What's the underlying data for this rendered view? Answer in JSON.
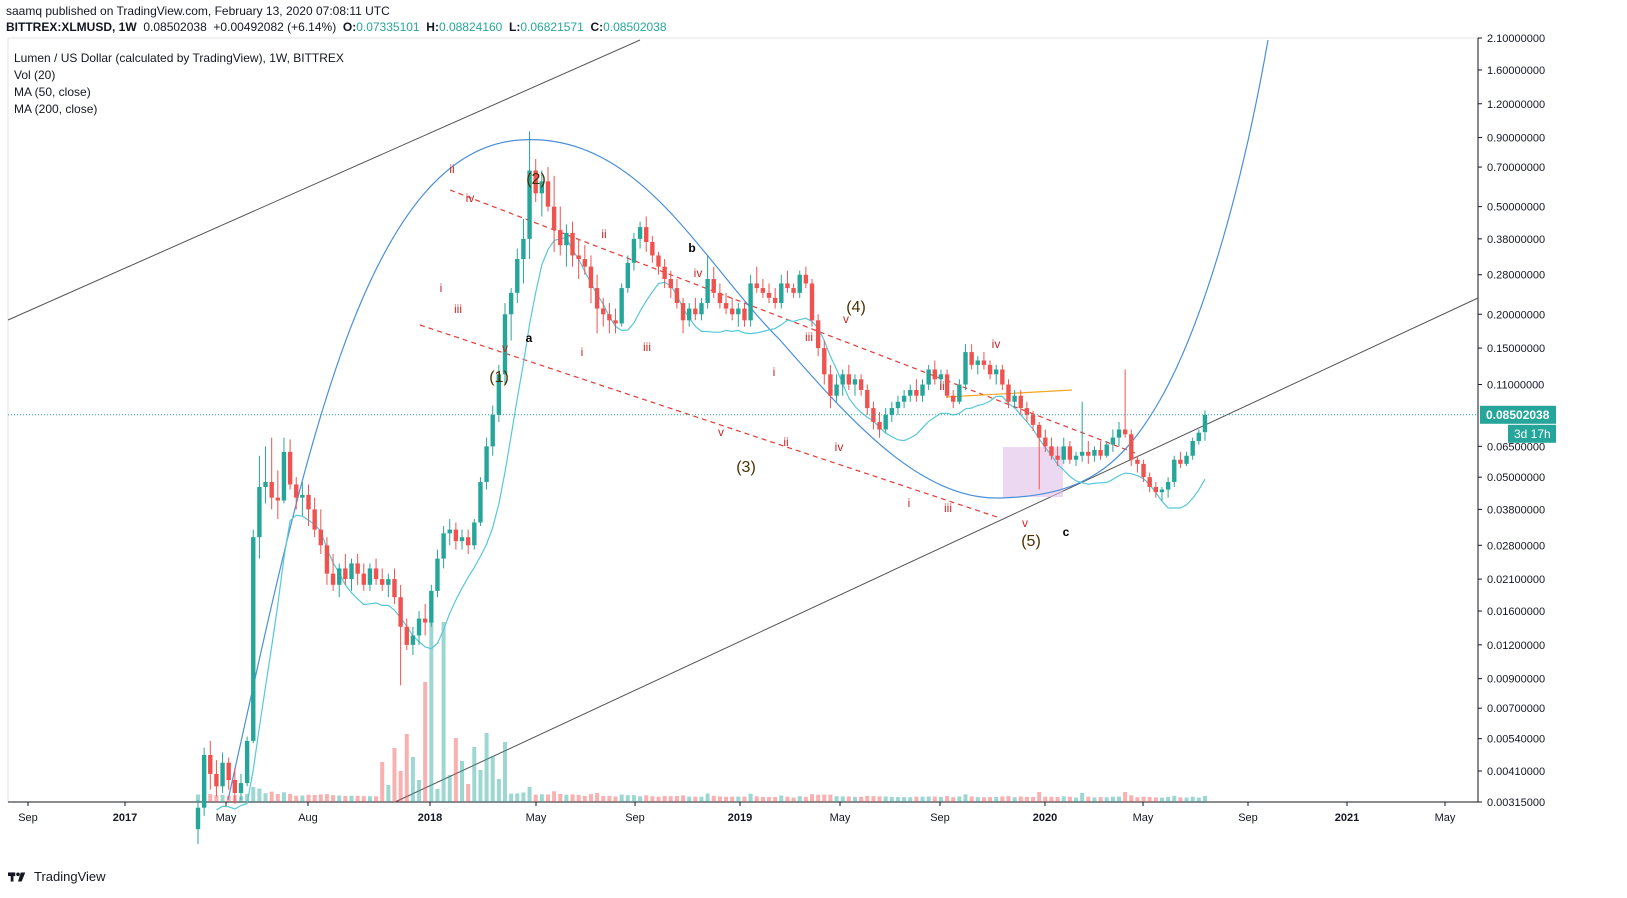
{
  "header": {
    "publish_line": "saamq published on TradingView.com, February 13, 2020 07:08:11 UTC",
    "symbol": "BITTREX:XLMUSD, 1W",
    "last": "0.08502038",
    "change": "+0.00492082 (+6.14%)",
    "o_label": "O:",
    "o": "0.07335101",
    "h_label": "H:",
    "h": "0.08824160",
    "l_label": "L:",
    "l": "0.06821571",
    "c_label": "C:",
    "c": "0.08502038"
  },
  "legend": {
    "title": "Lumen / US Dollar (calculated by TradingView), 1W, BITTREX",
    "vol": "Vol (20)",
    "ma50": "MA (50, close)",
    "ma200": "MA (200, close)"
  },
  "footer": {
    "brand": "TradingView"
  },
  "colors": {
    "up": "#26a69a",
    "down": "#ef5350",
    "ma50": "#56c8d8",
    "ma200": "#f5a623",
    "curve": "#4a90d9",
    "wave": "#c62828"
  },
  "chart_data": {
    "type": "candlestick",
    "scale": "log",
    "title": "Lumen / US Dollar (calculated by TradingView), 1W, BITTREX",
    "x_ticks": [
      "Sep",
      "2017",
      "May",
      "Aug",
      "2018",
      "May",
      "Sep",
      "2019",
      "May",
      "Sep",
      "2020",
      "May",
      "Sep",
      "2021",
      "May"
    ],
    "y_ticks": [
      "2.10000000",
      "1.60000000",
      "1.20000000",
      "0.90000000",
      "0.70000000",
      "0.50000000",
      "0.38000000",
      "0.28000000",
      "0.20000000",
      "0.15000000",
      "0.11000000",
      "0.06500000",
      "0.05000000",
      "0.03800000",
      "0.02800000",
      "0.02100000",
      "0.01600000",
      "0.01200000",
      "0.00900000",
      "0.00700000",
      "0.00540000",
      "0.00410000",
      "0.00315000"
    ],
    "last_price_label": "0.08502038",
    "countdown_label": "3d 17h",
    "ylim": [
      0.00315,
      2.1
    ],
    "candles": [
      [
        0.0025,
        0.0032,
        0.0022,
        0.003
      ],
      [
        0.003,
        0.005,
        0.0028,
        0.0047
      ],
      [
        0.0047,
        0.0053,
        0.0035,
        0.004
      ],
      [
        0.004,
        0.0045,
        0.0033,
        0.0036
      ],
      [
        0.0036,
        0.0048,
        0.0034,
        0.0044
      ],
      [
        0.0044,
        0.0046,
        0.0035,
        0.0038
      ],
      [
        0.0038,
        0.0042,
        0.0031,
        0.0034
      ],
      [
        0.0034,
        0.004,
        0.0032,
        0.0037
      ],
      [
        0.0037,
        0.0055,
        0.0036,
        0.0053
      ],
      [
        0.0053,
        0.032,
        0.0052,
        0.03
      ],
      [
        0.03,
        0.06,
        0.025,
        0.046
      ],
      [
        0.046,
        0.065,
        0.04,
        0.048
      ],
      [
        0.048,
        0.07,
        0.038,
        0.042
      ],
      [
        0.042,
        0.053,
        0.035,
        0.041
      ],
      [
        0.041,
        0.07,
        0.04,
        0.062
      ],
      [
        0.062,
        0.069,
        0.045,
        0.047
      ],
      [
        0.047,
        0.05,
        0.038,
        0.042
      ],
      [
        0.042,
        0.048,
        0.036,
        0.043
      ],
      [
        0.043,
        0.047,
        0.033,
        0.038
      ],
      [
        0.038,
        0.042,
        0.03,
        0.032
      ],
      [
        0.032,
        0.038,
        0.026,
        0.028
      ],
      [
        0.028,
        0.03,
        0.02,
        0.022
      ],
      [
        0.022,
        0.026,
        0.019,
        0.02
      ],
      [
        0.02,
        0.024,
        0.018,
        0.023
      ],
      [
        0.023,
        0.026,
        0.02,
        0.021
      ],
      [
        0.021,
        0.025,
        0.019,
        0.024
      ],
      [
        0.024,
        0.026,
        0.02,
        0.022
      ],
      [
        0.022,
        0.024,
        0.019,
        0.02
      ],
      [
        0.02,
        0.024,
        0.019,
        0.023
      ],
      [
        0.023,
        0.025,
        0.02,
        0.021
      ],
      [
        0.021,
        0.023,
        0.019,
        0.02
      ],
      [
        0.02,
        0.022,
        0.018,
        0.021
      ],
      [
        0.021,
        0.023,
        0.017,
        0.018
      ],
      [
        0.018,
        0.02,
        0.0085,
        0.014
      ],
      [
        0.014,
        0.015,
        0.0115,
        0.012
      ],
      [
        0.012,
        0.014,
        0.011,
        0.013
      ],
      [
        0.013,
        0.016,
        0.012,
        0.015
      ],
      [
        0.015,
        0.017,
        0.013,
        0.0145
      ],
      [
        0.0145,
        0.02,
        0.014,
        0.019
      ],
      [
        0.019,
        0.027,
        0.018,
        0.025
      ],
      [
        0.025,
        0.033,
        0.023,
        0.031
      ],
      [
        0.031,
        0.035,
        0.028,
        0.032
      ],
      [
        0.032,
        0.034,
        0.027,
        0.029
      ],
      [
        0.029,
        0.032,
        0.027,
        0.03
      ],
      [
        0.03,
        0.032,
        0.026,
        0.028
      ],
      [
        0.028,
        0.035,
        0.027,
        0.034
      ],
      [
        0.034,
        0.05,
        0.033,
        0.048
      ],
      [
        0.048,
        0.07,
        0.045,
        0.065
      ],
      [
        0.065,
        0.092,
        0.06,
        0.085
      ],
      [
        0.085,
        0.13,
        0.08,
        0.12
      ],
      [
        0.12,
        0.22,
        0.11,
        0.2
      ],
      [
        0.2,
        0.25,
        0.16,
        0.24
      ],
      [
        0.24,
        0.35,
        0.22,
        0.32
      ],
      [
        0.32,
        0.45,
        0.26,
        0.38
      ],
      [
        0.38,
        0.95,
        0.32,
        0.68
      ],
      [
        0.68,
        0.75,
        0.52,
        0.56
      ],
      [
        0.56,
        0.68,
        0.46,
        0.62
      ],
      [
        0.62,
        0.7,
        0.48,
        0.5
      ],
      [
        0.5,
        0.65,
        0.34,
        0.41
      ],
      [
        0.41,
        0.5,
        0.33,
        0.36
      ],
      [
        0.36,
        0.43,
        0.3,
        0.4
      ],
      [
        0.4,
        0.44,
        0.3,
        0.33
      ],
      [
        0.33,
        0.38,
        0.27,
        0.32
      ],
      [
        0.32,
        0.36,
        0.28,
        0.3
      ],
      [
        0.3,
        0.33,
        0.22,
        0.25
      ],
      [
        0.25,
        0.28,
        0.17,
        0.21
      ],
      [
        0.21,
        0.23,
        0.18,
        0.2
      ],
      [
        0.2,
        0.22,
        0.17,
        0.19
      ],
      [
        0.19,
        0.21,
        0.17,
        0.185
      ],
      [
        0.185,
        0.26,
        0.18,
        0.25
      ],
      [
        0.25,
        0.33,
        0.24,
        0.31
      ],
      [
        0.31,
        0.4,
        0.29,
        0.38
      ],
      [
        0.38,
        0.44,
        0.35,
        0.42
      ],
      [
        0.42,
        0.46,
        0.34,
        0.37
      ],
      [
        0.37,
        0.39,
        0.31,
        0.33
      ],
      [
        0.33,
        0.34,
        0.28,
        0.3
      ],
      [
        0.3,
        0.32,
        0.25,
        0.27
      ],
      [
        0.27,
        0.29,
        0.23,
        0.25
      ],
      [
        0.25,
        0.27,
        0.21,
        0.22
      ],
      [
        0.22,
        0.23,
        0.17,
        0.19
      ],
      [
        0.19,
        0.22,
        0.18,
        0.21
      ],
      [
        0.21,
        0.23,
        0.19,
        0.2
      ],
      [
        0.2,
        0.23,
        0.19,
        0.22
      ],
      [
        0.22,
        0.33,
        0.21,
        0.27
      ],
      [
        0.27,
        0.3,
        0.23,
        0.24
      ],
      [
        0.24,
        0.26,
        0.21,
        0.22
      ],
      [
        0.22,
        0.24,
        0.2,
        0.21
      ],
      [
        0.21,
        0.23,
        0.19,
        0.2
      ],
      [
        0.2,
        0.22,
        0.18,
        0.21
      ],
      [
        0.21,
        0.22,
        0.18,
        0.19
      ],
      [
        0.19,
        0.28,
        0.18,
        0.26
      ],
      [
        0.26,
        0.3,
        0.24,
        0.25
      ],
      [
        0.25,
        0.27,
        0.23,
        0.24
      ],
      [
        0.24,
        0.26,
        0.22,
        0.23
      ],
      [
        0.23,
        0.25,
        0.21,
        0.22
      ],
      [
        0.22,
        0.28,
        0.21,
        0.26
      ],
      [
        0.26,
        0.29,
        0.24,
        0.25
      ],
      [
        0.25,
        0.26,
        0.23,
        0.24
      ],
      [
        0.24,
        0.29,
        0.23,
        0.28
      ],
      [
        0.28,
        0.3,
        0.25,
        0.26
      ],
      [
        0.26,
        0.27,
        0.18,
        0.19
      ],
      [
        0.19,
        0.2,
        0.14,
        0.15
      ],
      [
        0.15,
        0.16,
        0.11,
        0.12
      ],
      [
        0.12,
        0.13,
        0.09,
        0.1
      ],
      [
        0.1,
        0.12,
        0.095,
        0.11
      ],
      [
        0.11,
        0.125,
        0.1,
        0.12
      ],
      [
        0.12,
        0.13,
        0.105,
        0.11
      ],
      [
        0.11,
        0.12,
        0.1,
        0.115
      ],
      [
        0.115,
        0.12,
        0.1,
        0.105
      ],
      [
        0.105,
        0.11,
        0.085,
        0.09
      ],
      [
        0.09,
        0.095,
        0.075,
        0.08
      ],
      [
        0.08,
        0.087,
        0.07,
        0.075
      ],
      [
        0.075,
        0.09,
        0.073,
        0.085
      ],
      [
        0.085,
        0.095,
        0.08,
        0.09
      ],
      [
        0.09,
        0.1,
        0.085,
        0.095
      ],
      [
        0.095,
        0.105,
        0.09,
        0.1
      ],
      [
        0.1,
        0.11,
        0.095,
        0.105
      ],
      [
        0.105,
        0.115,
        0.095,
        0.1
      ],
      [
        0.1,
        0.115,
        0.095,
        0.11
      ],
      [
        0.11,
        0.13,
        0.105,
        0.125
      ],
      [
        0.125,
        0.135,
        0.11,
        0.115
      ],
      [
        0.115,
        0.125,
        0.105,
        0.12
      ],
      [
        0.12,
        0.125,
        0.098,
        0.1
      ],
      [
        0.1,
        0.105,
        0.09,
        0.095
      ],
      [
        0.095,
        0.115,
        0.093,
        0.11
      ],
      [
        0.11,
        0.155,
        0.105,
        0.145
      ],
      [
        0.145,
        0.155,
        0.125,
        0.13
      ],
      [
        0.13,
        0.14,
        0.12,
        0.135
      ],
      [
        0.135,
        0.145,
        0.125,
        0.13
      ],
      [
        0.13,
        0.135,
        0.115,
        0.12
      ],
      [
        0.12,
        0.13,
        0.11,
        0.125
      ],
      [
        0.125,
        0.13,
        0.105,
        0.11
      ],
      [
        0.11,
        0.115,
        0.09,
        0.095
      ],
      [
        0.095,
        0.105,
        0.09,
        0.1
      ],
      [
        0.1,
        0.105,
        0.085,
        0.09
      ],
      [
        0.09,
        0.095,
        0.08,
        0.085
      ],
      [
        0.085,
        0.088,
        0.074,
        0.078
      ],
      [
        0.078,
        0.08,
        0.045,
        0.07
      ],
      [
        0.07,
        0.075,
        0.062,
        0.065
      ],
      [
        0.065,
        0.07,
        0.058,
        0.06
      ],
      [
        0.06,
        0.065,
        0.055,
        0.058
      ],
      [
        0.058,
        0.07,
        0.056,
        0.065
      ],
      [
        0.065,
        0.068,
        0.056,
        0.058
      ],
      [
        0.058,
        0.062,
        0.055,
        0.06
      ],
      [
        0.06,
        0.095,
        0.057,
        0.062
      ],
      [
        0.062,
        0.068,
        0.056,
        0.06
      ],
      [
        0.06,
        0.065,
        0.057,
        0.063
      ],
      [
        0.063,
        0.068,
        0.058,
        0.06
      ],
      [
        0.06,
        0.068,
        0.059,
        0.066
      ],
      [
        0.066,
        0.075,
        0.062,
        0.07
      ],
      [
        0.07,
        0.08,
        0.065,
        0.075
      ],
      [
        0.075,
        0.125,
        0.07,
        0.072
      ],
      [
        0.072,
        0.075,
        0.055,
        0.058
      ],
      [
        0.058,
        0.06,
        0.052,
        0.056
      ],
      [
        0.056,
        0.058,
        0.048,
        0.05
      ],
      [
        0.05,
        0.052,
        0.044,
        0.046
      ],
      [
        0.046,
        0.048,
        0.042,
        0.044
      ],
      [
        0.044,
        0.046,
        0.041,
        0.045
      ],
      [
        0.045,
        0.05,
        0.042,
        0.048
      ],
      [
        0.048,
        0.06,
        0.046,
        0.058
      ],
      [
        0.058,
        0.062,
        0.054,
        0.056
      ],
      [
        0.056,
        0.062,
        0.055,
        0.06
      ],
      [
        0.06,
        0.07,
        0.058,
        0.068
      ],
      [
        0.068,
        0.075,
        0.066,
        0.073
      ],
      [
        0.07335101,
        0.0882416,
        0.06821571,
        0.08502038
      ]
    ],
    "wave_labels": [
      {
        "text": "(1)",
        "x": 499,
        "y": 382,
        "color": "#4a3000",
        "size": 16
      },
      {
        "text": "(2)",
        "x": 536,
        "y": 184,
        "color": "#4a3000",
        "size": 16
      },
      {
        "text": "(3)",
        "x": 746,
        "y": 472,
        "color": "#4a3000",
        "size": 16
      },
      {
        "text": "(4)",
        "x": 856,
        "y": 312,
        "color": "#4a3000",
        "size": 16
      },
      {
        "text": "(5)",
        "x": 1031,
        "y": 546,
        "color": "#4a3000",
        "size": 16
      },
      {
        "text": "a",
        "x": 529,
        "y": 342,
        "color": "#000000",
        "size": 12
      },
      {
        "text": "b",
        "x": 692,
        "y": 252,
        "color": "#000000",
        "size": 12
      },
      {
        "text": "c",
        "x": 1066,
        "y": 536,
        "color": "#000000",
        "size": 12
      },
      {
        "text": "ii",
        "x": 452,
        "y": 173,
        "color": "#c62828",
        "size": 12
      },
      {
        "text": "iv",
        "x": 470,
        "y": 202,
        "color": "#c62828",
        "size": 12
      },
      {
        "text": "i",
        "x": 441,
        "y": 292,
        "color": "#c62828",
        "size": 12
      },
      {
        "text": "iii",
        "x": 458,
        "y": 313,
        "color": "#c62828",
        "size": 12
      },
      {
        "text": "v",
        "x": 505,
        "y": 352,
        "color": "#c62828",
        "size": 12
      },
      {
        "text": "ii",
        "x": 604,
        "y": 238,
        "color": "#c62828",
        "size": 12
      },
      {
        "text": "iv",
        "x": 698,
        "y": 277,
        "color": "#c62828",
        "size": 12
      },
      {
        "text": "i",
        "x": 582,
        "y": 356,
        "color": "#c62828",
        "size": 12
      },
      {
        "text": "iii",
        "x": 647,
        "y": 351,
        "color": "#c62828",
        "size": 12
      },
      {
        "text": "v",
        "x": 721,
        "y": 436,
        "color": "#c62828",
        "size": 12
      },
      {
        "text": "ii",
        "x": 786,
        "y": 446,
        "color": "#c62828",
        "size": 12
      },
      {
        "text": "i",
        "x": 774,
        "y": 376,
        "color": "#c62828",
        "size": 12
      },
      {
        "text": "iii",
        "x": 809,
        "y": 341,
        "color": "#c62828",
        "size": 12
      },
      {
        "text": "iv",
        "x": 839,
        "y": 451,
        "color": "#c62828",
        "size": 12
      },
      {
        "text": "v",
        "x": 846,
        "y": 323,
        "color": "#c62828",
        "size": 12
      },
      {
        "text": "ii",
        "x": 942,
        "y": 390,
        "color": "#c62828",
        "size": 12
      },
      {
        "text": "iv",
        "x": 996,
        "y": 348,
        "color": "#c62828",
        "size": 12
      },
      {
        "text": "i",
        "x": 909,
        "y": 507,
        "color": "#c62828",
        "size": 12
      },
      {
        "text": "iii",
        "x": 948,
        "y": 512,
        "color": "#c62828",
        "size": 12
      },
      {
        "text": "v",
        "x": 1025,
        "y": 527,
        "color": "#c62828",
        "size": 12
      }
    ]
  }
}
